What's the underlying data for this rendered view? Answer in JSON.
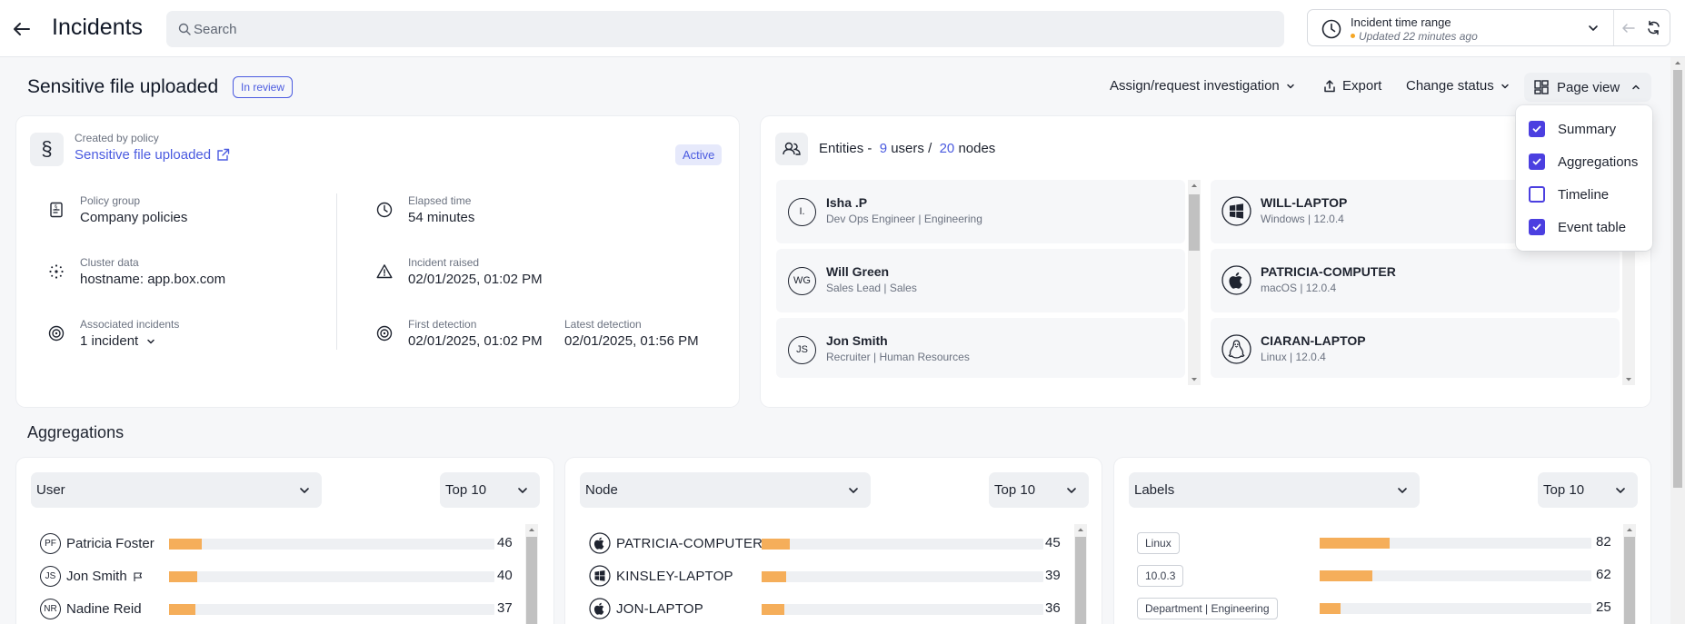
{
  "header": {
    "title": "Incidents",
    "search_placeholder": "Search",
    "time_range": {
      "title": "Incident time range",
      "updated": "Updated 22 minutes ago"
    }
  },
  "incident": {
    "title": "Sensitive file uploaded",
    "status": "In review",
    "actions": {
      "assign": "Assign/request investigation",
      "export": "Export",
      "change_status": "Change status",
      "page_view": "Page view"
    }
  },
  "page_view_menu": {
    "items": [
      {
        "label": "Summary",
        "checked": true
      },
      {
        "label": "Aggregations",
        "checked": true
      },
      {
        "label": "Timeline",
        "checked": false
      },
      {
        "label": "Event table",
        "checked": true
      }
    ]
  },
  "summary": {
    "created_by_label": "Created by policy",
    "policy_name": "Sensitive file uploaded",
    "state": "Active",
    "policy_group_label": "Policy group",
    "policy_group": "Company policies",
    "cluster_label": "Cluster data",
    "cluster_value": "hostname: app.box.com",
    "associated_label": "Associated incidents",
    "associated_value": "1 incident",
    "elapsed_label": "Elapsed time",
    "elapsed_value": "54 minutes",
    "raised_label": "Incident raised",
    "raised_value": "02/01/2025, 01:02 PM",
    "first_label": "First detection",
    "first_value": "02/01/2025, 01:02 PM",
    "latest_label": "Latest detection",
    "latest_value": "02/01/2025, 01:56 PM"
  },
  "entities": {
    "title_prefix": "Entities -",
    "users_count": "9",
    "users_label": "users /",
    "nodes_count": "20",
    "nodes_label": "nodes",
    "users": [
      {
        "initials": "I.",
        "name": "Isha .P",
        "sub": "Dev Ops Engineer | Engineering"
      },
      {
        "initials": "WG",
        "name": "Will Green",
        "sub": "Sales Lead | Sales"
      },
      {
        "initials": "JS",
        "name": "Jon Smith",
        "sub": "Recruiter | Human Resources"
      }
    ],
    "nodes": [
      {
        "os": "windows-icon",
        "name": "WILL-LAPTOP",
        "sub": "Windows | 12.0.4"
      },
      {
        "os": "apple-icon",
        "name": "PATRICIA-COMPUTER",
        "sub": "macOS | 12.0.4"
      },
      {
        "os": "linux-icon",
        "name": "CIARAN-LAPTOP",
        "sub": "Linux | 12.0.4"
      }
    ]
  },
  "aggregations": {
    "heading": "Aggregations",
    "panels": [
      {
        "select": "User",
        "top": "Top 10",
        "max": 460,
        "rows": [
          {
            "initials": "PF",
            "name": "Patricia Foster",
            "value": 46,
            "display": "46",
            "flag": false
          },
          {
            "initials": "JS",
            "name": "Jon Smith",
            "value": 40,
            "display": "40",
            "flag": true
          },
          {
            "initials": "NR",
            "name": "Nadine Reid",
            "value": 37,
            "display": "37",
            "flag": false
          }
        ]
      },
      {
        "select": "Node",
        "top": "Top 10",
        "max": 450,
        "rows": [
          {
            "os": "apple-icon",
            "name": "PATRICIA-COMPUTER",
            "value": 45,
            "display": "45"
          },
          {
            "os": "windows-icon",
            "name": "KINSLEY-LAPTOP",
            "value": 39,
            "display": "39"
          },
          {
            "os": "apple-icon",
            "name": "JON-LAPTOP",
            "value": 36,
            "display": "36"
          }
        ]
      },
      {
        "select": "Labels",
        "top": "Top 10",
        "max": 320,
        "rows": [
          {
            "tag": "Linux",
            "value": 82,
            "display": "82"
          },
          {
            "tag": "10.0.3",
            "value": 62,
            "display": "62"
          },
          {
            "tag": "Department | Engineering",
            "value": 25,
            "display": "25"
          }
        ]
      }
    ]
  },
  "colors": {
    "accent": "#4b5be0",
    "bar": "#f5ae5a",
    "checkbox": "#4b3fe0"
  }
}
